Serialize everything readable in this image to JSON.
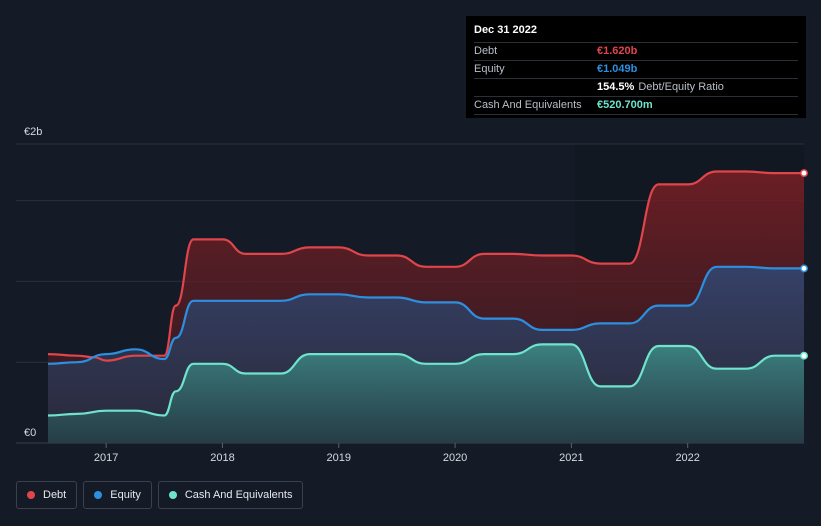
{
  "tooltip": {
    "date": "Dec 31 2022",
    "rows": [
      {
        "label": "Debt",
        "value": "€1.620b",
        "color": "#e0454b"
      },
      {
        "label": "Equity",
        "value": "€1.049b",
        "color": "#2d8fe0"
      },
      {
        "label": "",
        "value": "154.5%",
        "color": "#ffffff",
        "suffix": "Debt/Equity Ratio"
      },
      {
        "label": "Cash And Equivalents",
        "value": "€520.700m",
        "color": "#6fe3cd"
      }
    ]
  },
  "legend": [
    {
      "label": "Debt",
      "color": "#e0454b"
    },
    {
      "label": "Equity",
      "color": "#2d8fe0"
    },
    {
      "label": "Cash And Equivalents",
      "color": "#6fe3cd"
    }
  ],
  "chart_data": {
    "type": "area",
    "y_top_label": "€2b",
    "y_bottom_label": "€0",
    "ylim": [
      0,
      1.85
    ],
    "xlim": [
      2016.5,
      2023.0
    ],
    "x_ticks": [
      "2017",
      "2018",
      "2019",
      "2020",
      "2021",
      "2022"
    ],
    "series": [
      {
        "name": "Debt",
        "color": "#e0454b",
        "x": [
          2016.5,
          2016.75,
          2016.9,
          2017.0,
          2017.25,
          2017.5,
          2017.6,
          2017.75,
          2018.0,
          2018.2,
          2018.5,
          2018.75,
          2019.0,
          2019.25,
          2019.5,
          2019.75,
          2020.0,
          2020.25,
          2020.5,
          2020.75,
          2021.0,
          2021.25,
          2021.5,
          2021.75,
          2022.0,
          2022.25,
          2022.5,
          2022.75,
          2023.0
        ],
        "y": [
          0.55,
          0.54,
          0.53,
          0.51,
          0.54,
          0.54,
          0.85,
          1.26,
          1.26,
          1.17,
          1.17,
          1.21,
          1.21,
          1.16,
          1.16,
          1.09,
          1.09,
          1.17,
          1.17,
          1.16,
          1.16,
          1.11,
          1.11,
          1.6,
          1.6,
          1.68,
          1.68,
          1.67,
          1.67
        ]
      },
      {
        "name": "Equity",
        "color": "#2d8fe0",
        "x": [
          2016.5,
          2016.75,
          2017.0,
          2017.25,
          2017.5,
          2017.6,
          2017.75,
          2018.0,
          2018.25,
          2018.5,
          2018.75,
          2019.0,
          2019.25,
          2019.5,
          2019.75,
          2020.0,
          2020.25,
          2020.5,
          2020.75,
          2021.0,
          2021.25,
          2021.5,
          2021.75,
          2022.0,
          2022.25,
          2022.5,
          2022.75,
          2023.0
        ],
        "y": [
          0.49,
          0.5,
          0.55,
          0.58,
          0.52,
          0.65,
          0.88,
          0.88,
          0.88,
          0.88,
          0.92,
          0.92,
          0.9,
          0.9,
          0.87,
          0.87,
          0.77,
          0.77,
          0.7,
          0.7,
          0.74,
          0.74,
          0.85,
          0.85,
          1.09,
          1.09,
          1.08,
          1.08
        ]
      },
      {
        "name": "Cash And Equivalents",
        "color": "#6fe3cd",
        "x": [
          2016.5,
          2016.75,
          2017.0,
          2017.25,
          2017.5,
          2017.6,
          2017.75,
          2018.0,
          2018.2,
          2018.5,
          2018.75,
          2019.0,
          2019.25,
          2019.5,
          2019.75,
          2020.0,
          2020.25,
          2020.5,
          2020.75,
          2021.0,
          2021.25,
          2021.5,
          2021.75,
          2022.0,
          2022.25,
          2022.5,
          2022.75,
          2023.0
        ],
        "y": [
          0.17,
          0.18,
          0.2,
          0.2,
          0.17,
          0.32,
          0.49,
          0.49,
          0.43,
          0.43,
          0.55,
          0.55,
          0.55,
          0.55,
          0.49,
          0.49,
          0.55,
          0.55,
          0.61,
          0.61,
          0.35,
          0.35,
          0.6,
          0.6,
          0.46,
          0.46,
          0.54,
          0.54
        ]
      }
    ]
  }
}
